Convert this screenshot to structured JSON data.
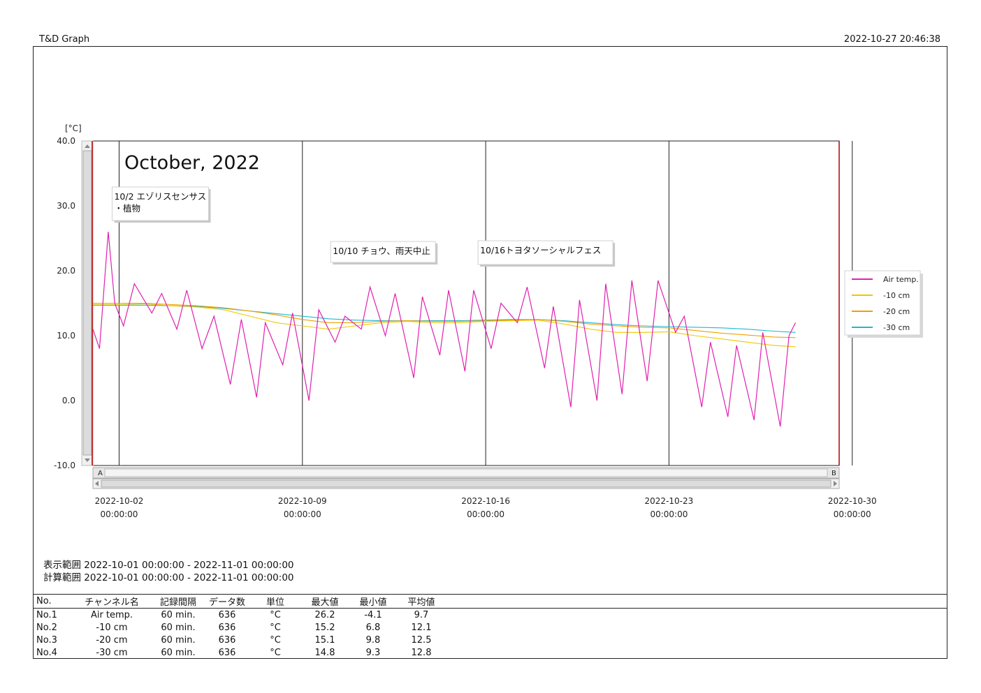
{
  "header": {
    "app_title": "T&D Graph",
    "timestamp": "2022-10-27 20:46:38"
  },
  "chart_data": {
    "type": "line",
    "title": "October, 2022",
    "ylabel": "[°C]",
    "ylim": [
      -10,
      40
    ],
    "yticks": [
      "40.0",
      "30.0",
      "20.0",
      "10.0",
      "0.0",
      "-10.0"
    ],
    "xlim": [
      "2022-10-01 00:00:00",
      "2022-10-29 12:00:00"
    ],
    "xticks": [
      {
        "date": "2022-10-02",
        "time": "00:00:00"
      },
      {
        "date": "2022-10-09",
        "time": "00:00:00"
      },
      {
        "date": "2022-10-16",
        "time": "00:00:00"
      },
      {
        "date": "2022-10-23",
        "time": "00:00:00"
      },
      {
        "date": "2022-10-30",
        "time": "00:00:00"
      }
    ],
    "grid": "vertical lines at x ticks",
    "legend_position": "right",
    "annotations": [
      {
        "date": "2022-10-02",
        "lines": [
          "10/2 エゾリスセンサス",
          "・植物"
        ]
      },
      {
        "date": "2022-10-10",
        "lines": [
          "10/10 チョウ、雨天中止"
        ]
      },
      {
        "date": "2022-10-16",
        "lines": [
          "10/16トヨタソーシャルフェス"
        ]
      }
    ],
    "scroll_labels": {
      "left": "A",
      "right": "B"
    },
    "series": [
      {
        "name": "Air temp.",
        "color": "#e020b0",
        "x": [
          "2022-10-01 00:00",
          "2022-10-01 06:00",
          "2022-10-01 14:00",
          "2022-10-01 20:00",
          "2022-10-02 04:00",
          "2022-10-02 14:00",
          "2022-10-03 06:00",
          "2022-10-03 15:00",
          "2022-10-04 05:00",
          "2022-10-04 14:00",
          "2022-10-05 04:00",
          "2022-10-05 15:00",
          "2022-10-06 06:00",
          "2022-10-06 16:00",
          "2022-10-07 06:00",
          "2022-10-07 14:00",
          "2022-10-08 06:00",
          "2022-10-08 15:00",
          "2022-10-09 06:00",
          "2022-10-09 15:00",
          "2022-10-10 06:00",
          "2022-10-10 15:00",
          "2022-10-11 06:00",
          "2022-10-11 14:00",
          "2022-10-12 04:00",
          "2022-10-12 13:00",
          "2022-10-13 06:00",
          "2022-10-13 14:00",
          "2022-10-14 06:00",
          "2022-10-14 14:00",
          "2022-10-15 05:00",
          "2022-10-15 13:00",
          "2022-10-16 05:00",
          "2022-10-16 14:00",
          "2022-10-17 05:00",
          "2022-10-17 14:00",
          "2022-10-18 06:00",
          "2022-10-18 14:00",
          "2022-10-19 06:00",
          "2022-10-19 14:00",
          "2022-10-20 06:00",
          "2022-10-20 14:00",
          "2022-10-21 05:00",
          "2022-10-21 14:00",
          "2022-10-22 04:00",
          "2022-10-22 14:00",
          "2022-10-23 06:00",
          "2022-10-23 14:00",
          "2022-10-24 06:00",
          "2022-10-24 14:00",
          "2022-10-25 06:00",
          "2022-10-25 14:00",
          "2022-10-26 06:00",
          "2022-10-26 14:00",
          "2022-10-27 06:00",
          "2022-10-27 14:00",
          "2022-10-27 20:00"
        ],
        "y": [
          11.0,
          8.0,
          26.0,
          15.0,
          11.5,
          18.0,
          13.5,
          16.5,
          11.0,
          17.0,
          8.0,
          13.0,
          2.5,
          12.5,
          0.5,
          12.0,
          5.5,
          13.5,
          0.0,
          14.0,
          9.0,
          13.0,
          11.0,
          17.5,
          10.0,
          16.5,
          3.5,
          16.0,
          7.0,
          17.0,
          4.5,
          17.0,
          8.0,
          15.0,
          12.0,
          17.5,
          5.0,
          14.5,
          -1.0,
          15.5,
          0.0,
          18.0,
          1.0,
          18.5,
          3.0,
          18.5,
          10.5,
          13.0,
          -1.0,
          9.0,
          -2.5,
          8.5,
          -3.0,
          10.5,
          -4.0,
          10.0,
          12.0
        ]
      },
      {
        "name": "-10 cm",
        "color": "#f0c800",
        "x": [
          "2022-10-01 00:00",
          "2022-10-02 00:00",
          "2022-10-03 00:00",
          "2022-10-04 00:00",
          "2022-10-05 00:00",
          "2022-10-06 00:00",
          "2022-10-07 00:00",
          "2022-10-08 00:00",
          "2022-10-09 00:00",
          "2022-10-10 00:00",
          "2022-10-11 00:00",
          "2022-10-12 00:00",
          "2022-10-13 00:00",
          "2022-10-14 00:00",
          "2022-10-15 00:00",
          "2022-10-16 00:00",
          "2022-10-17 00:00",
          "2022-10-18 00:00",
          "2022-10-19 00:00",
          "2022-10-20 00:00",
          "2022-10-21 00:00",
          "2022-10-22 00:00",
          "2022-10-23 00:00",
          "2022-10-24 00:00",
          "2022-10-25 00:00",
          "2022-10-26 00:00",
          "2022-10-27 00:00",
          "2022-10-27 20:00"
        ],
        "y": [
          14.8,
          14.8,
          14.9,
          14.6,
          14.4,
          14.0,
          13.0,
          12.0,
          11.5,
          11.0,
          11.5,
          12.0,
          12.2,
          12.0,
          12.0,
          12.2,
          12.3,
          12.4,
          11.8,
          11.0,
          10.5,
          10.5,
          10.6,
          10.0,
          9.5,
          9.0,
          8.5,
          8.3
        ]
      },
      {
        "name": "-20 cm",
        "color": "#f0a000",
        "x": [
          "2022-10-01 00:00",
          "2022-10-02 00:00",
          "2022-10-03 00:00",
          "2022-10-04 00:00",
          "2022-10-05 00:00",
          "2022-10-06 00:00",
          "2022-10-07 00:00",
          "2022-10-08 00:00",
          "2022-10-09 00:00",
          "2022-10-10 00:00",
          "2022-10-11 00:00",
          "2022-10-12 00:00",
          "2022-10-13 00:00",
          "2022-10-14 00:00",
          "2022-10-15 00:00",
          "2022-10-16 00:00",
          "2022-10-17 00:00",
          "2022-10-18 00:00",
          "2022-10-19 00:00",
          "2022-10-20 00:00",
          "2022-10-21 00:00",
          "2022-10-22 00:00",
          "2022-10-23 00:00",
          "2022-10-24 00:00",
          "2022-10-25 00:00",
          "2022-10-26 00:00",
          "2022-10-27 00:00",
          "2022-10-27 20:00"
        ],
        "y": [
          15.0,
          15.0,
          15.0,
          14.8,
          14.6,
          14.3,
          13.8,
          13.2,
          12.5,
          12.0,
          12.0,
          12.2,
          12.3,
          12.2,
          12.2,
          12.3,
          12.4,
          12.5,
          12.2,
          11.8,
          11.5,
          11.3,
          11.2,
          10.8,
          10.4,
          10.1,
          9.8,
          9.7
        ]
      },
      {
        "name": "-30 cm",
        "color": "#20b8d0",
        "x": [
          "2022-10-01 00:00",
          "2022-10-02 00:00",
          "2022-10-03 00:00",
          "2022-10-04 00:00",
          "2022-10-05 00:00",
          "2022-10-06 00:00",
          "2022-10-07 00:00",
          "2022-10-08 00:00",
          "2022-10-09 00:00",
          "2022-10-10 00:00",
          "2022-10-11 00:00",
          "2022-10-12 00:00",
          "2022-10-13 00:00",
          "2022-10-14 00:00",
          "2022-10-15 00:00",
          "2022-10-16 00:00",
          "2022-10-17 00:00",
          "2022-10-18 00:00",
          "2022-10-19 00:00",
          "2022-10-20 00:00",
          "2022-10-21 00:00",
          "2022-10-22 00:00",
          "2022-10-23 00:00",
          "2022-10-24 00:00",
          "2022-10-25 00:00",
          "2022-10-26 00:00",
          "2022-10-27 00:00",
          "2022-10-27 20:00"
        ],
        "y": [
          14.7,
          14.7,
          14.7,
          14.6,
          14.5,
          14.2,
          13.8,
          13.4,
          13.0,
          12.6,
          12.4,
          12.3,
          12.3,
          12.3,
          12.3,
          12.4,
          12.5,
          12.5,
          12.3,
          12.0,
          11.7,
          11.5,
          11.4,
          11.3,
          11.2,
          11.0,
          10.7,
          10.5
        ]
      }
    ]
  },
  "ranges": {
    "display": "表示範囲 2022-10-01 00:00:00 - 2022-11-01 00:00:00",
    "calc": "計算範囲 2022-10-01 00:00:00 - 2022-11-01 00:00:00"
  },
  "stats_table": {
    "headers": [
      "No.",
      "チャンネル名",
      "記録間隔",
      "データ数",
      "単位",
      "最大値",
      "最小値",
      "平均値"
    ],
    "rows": [
      [
        "No.1",
        "Air temp.",
        "60 min.",
        "636",
        "°C",
        "26.2",
        "-4.1",
        "9.7"
      ],
      [
        "No.2",
        "-10 cm",
        "60 min.",
        "636",
        "°C",
        "15.2",
        "6.8",
        "12.1"
      ],
      [
        "No.3",
        "-20 cm",
        "60 min.",
        "636",
        "°C",
        "15.1",
        "9.8",
        "12.5"
      ],
      [
        "No.4",
        "-30 cm",
        "60 min.",
        "636",
        "°C",
        "14.8",
        "9.3",
        "12.8"
      ]
    ]
  }
}
